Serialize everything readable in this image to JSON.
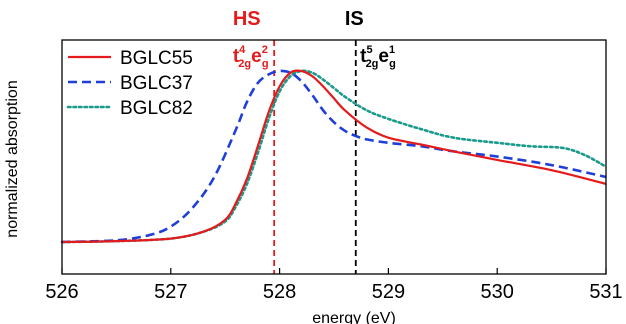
{
  "chart_data": {
    "type": "line",
    "xlabel": "energy (eV)",
    "ylabel": "normalized absorption",
    "xlim": [
      526,
      531
    ],
    "ylim": [
      0,
      1.22
    ],
    "x_ticks": [
      "526",
      "527",
      "528",
      "529",
      "530",
      "531"
    ],
    "y_ticks": [],
    "grid": false,
    "legend_position": "top-left",
    "series": [
      {
        "name": "BGLC55",
        "color": "#e41a1c",
        "style": "solid",
        "x": [
          526.0,
          526.5,
          527.0,
          527.3,
          527.5,
          527.6,
          527.7,
          527.8,
          527.9,
          528.0,
          528.1,
          528.2,
          528.3,
          528.4,
          528.5,
          528.6,
          528.8,
          529.0,
          529.3,
          529.6,
          530.0,
          530.5,
          531.0
        ],
        "y": [
          0.0,
          0.005,
          0.02,
          0.06,
          0.13,
          0.23,
          0.37,
          0.56,
          0.76,
          0.91,
          0.99,
          1.0,
          0.97,
          0.91,
          0.84,
          0.77,
          0.67,
          0.61,
          0.57,
          0.53,
          0.48,
          0.42,
          0.34
        ]
      },
      {
        "name": "BGLC37",
        "color": "#1f3fd8",
        "style": "dashed",
        "x": [
          526.0,
          526.5,
          526.8,
          527.0,
          527.2,
          527.4,
          527.6,
          527.7,
          527.8,
          527.9,
          528.0,
          528.1,
          528.2,
          528.3,
          528.4,
          528.5,
          528.6,
          528.7,
          528.8,
          529.0,
          529.3,
          529.6,
          530.0,
          530.5,
          531.0
        ],
        "y": [
          0.0,
          0.01,
          0.04,
          0.09,
          0.2,
          0.38,
          0.66,
          0.82,
          0.93,
          0.98,
          1.0,
          0.99,
          0.94,
          0.86,
          0.77,
          0.7,
          0.65,
          0.62,
          0.6,
          0.58,
          0.56,
          0.53,
          0.5,
          0.45,
          0.38
        ]
      },
      {
        "name": "BGLC82",
        "color": "#1a9a8c",
        "style": "dotted",
        "x": [
          526.0,
          526.5,
          527.0,
          527.3,
          527.5,
          527.6,
          527.7,
          527.8,
          527.9,
          528.0,
          528.1,
          528.2,
          528.3,
          528.4,
          528.5,
          528.6,
          528.8,
          529.0,
          529.3,
          529.6,
          530.0,
          530.3,
          530.6,
          530.8,
          531.0
        ],
        "y": [
          0.0,
          0.005,
          0.02,
          0.06,
          0.12,
          0.21,
          0.34,
          0.52,
          0.72,
          0.88,
          0.97,
          1.0,
          0.99,
          0.95,
          0.9,
          0.85,
          0.77,
          0.72,
          0.66,
          0.61,
          0.58,
          0.56,
          0.55,
          0.51,
          0.44
        ]
      }
    ],
    "annotations": [
      {
        "id": "hs",
        "title": "HS",
        "label": "t2g4 eg2",
        "label_parts": {
          "t_sup": "4",
          "t_sub": "2g",
          "e_sup": "2",
          "e_sub": "g"
        },
        "x": 527.95,
        "color": "#e41a1c",
        "style": "dashed"
      },
      {
        "id": "is",
        "title": "IS",
        "label": "t2g5 eg1",
        "label_parts": {
          "t_sup": "5",
          "t_sub": "2g",
          "e_sup": "1",
          "e_sub": "g"
        },
        "x": 528.7,
        "color": "#000000",
        "style": "dashed"
      }
    ]
  }
}
